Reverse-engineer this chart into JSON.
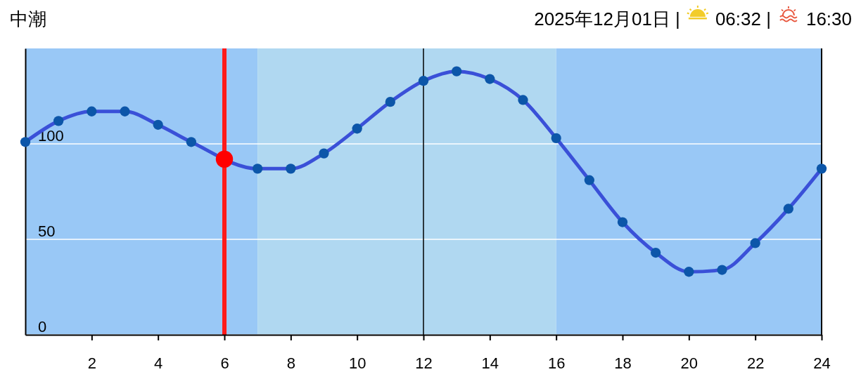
{
  "chart_data": {
    "type": "line",
    "title": "中潮",
    "subtitle": "2025年12月01日 |",
    "annotations": [
      "06:32 |",
      "16:30"
    ],
    "xlim": [
      0,
      24
    ],
    "xticks": [
      2,
      4,
      6,
      8,
      10,
      12,
      14,
      16,
      18,
      20,
      22,
      24
    ],
    "ylim": [
      0,
      150
    ],
    "yticks": [
      0,
      50,
      100
    ],
    "grid": "y",
    "marker": "circle",
    "line_style": "solid",
    "bands": [
      {
        "axis": "x",
        "from": 0,
        "to": 7,
        "color": "#99c8f6"
      },
      {
        "axis": "x",
        "from": 7,
        "to": 16,
        "color": "#b0d8f1"
      },
      {
        "axis": "x",
        "from": 16,
        "to": 24,
        "color": "#99c8f6"
      }
    ],
    "ref_lines": [
      {
        "axis": "x",
        "value": 6,
        "color": "#ff1a1a"
      },
      {
        "axis": "x",
        "value": 12
      }
    ],
    "series": [
      {
        "color": "#3a50d8",
        "x": [
          0,
          1,
          2,
          3,
          4,
          5,
          7,
          8,
          9,
          10,
          11,
          12,
          13,
          14,
          15,
          16,
          17,
          18,
          19,
          20,
          21,
          22,
          23,
          24
        ],
        "values": [
          101,
          112,
          117,
          117,
          110,
          101,
          87,
          87,
          95,
          108,
          122,
          133,
          138,
          134,
          123,
          103,
          81,
          59,
          43,
          33,
          34,
          48,
          66,
          87
        ]
      },
      {
        "type": "scatter",
        "color": "#ff0000",
        "x": [
          6
        ],
        "values": [
          92
        ]
      }
    ]
  }
}
